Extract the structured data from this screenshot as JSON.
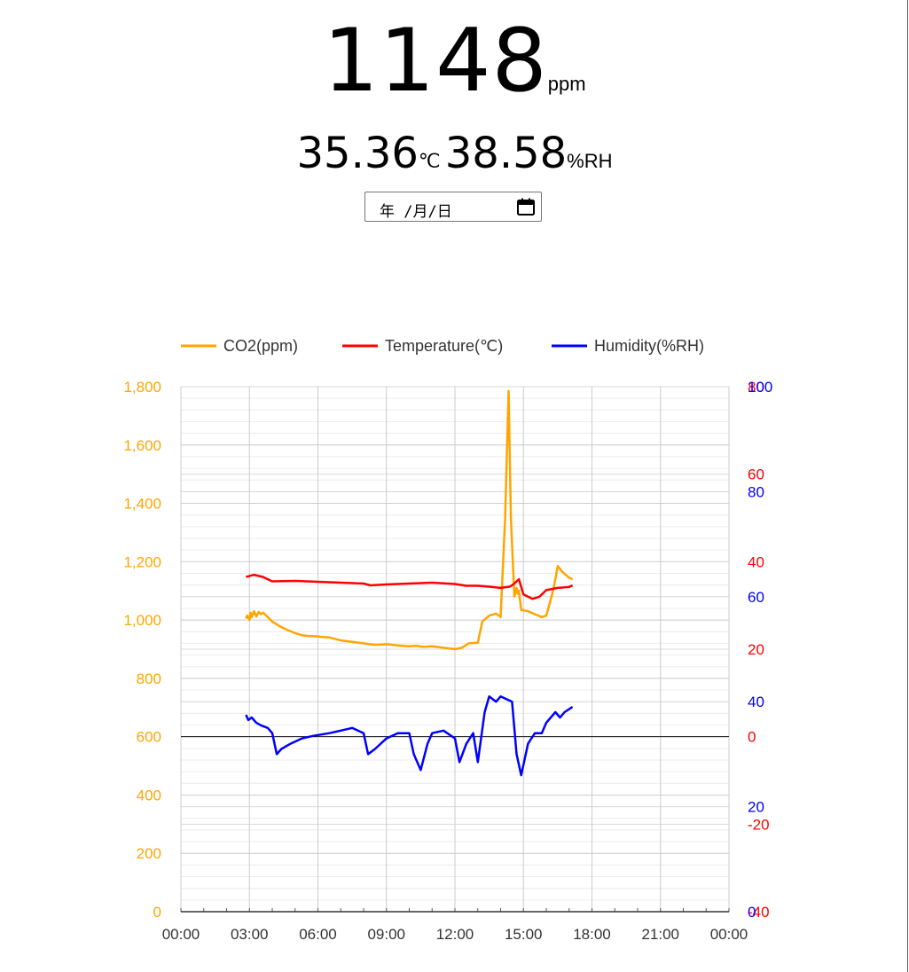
{
  "readout": {
    "co2_value": "1148",
    "co2_unit": "ppm",
    "temperature_value": "35.36",
    "temperature_unit": "℃",
    "humidity_value": "38.58",
    "humidity_unit": "%RH"
  },
  "date_picker": {
    "placeholder_text": "年 /月/日",
    "icon": "calendar-icon"
  },
  "chart_data": {
    "type": "line",
    "legend_position": "top",
    "grid": true,
    "colors": {
      "co2": "#FFA500",
      "temperature": "#FF0000",
      "humidity": "#0000FF",
      "grid": "#cccccc",
      "axis": "#333333"
    },
    "x_ticks": [
      "00:00",
      "03:00",
      "06:00",
      "09:00",
      "12:00",
      "15:00",
      "18:00",
      "21:00",
      "00:00"
    ],
    "x_range_hours": [
      0,
      24
    ],
    "axes": {
      "co2": {
        "range": [
          0,
          1800
        ],
        "ticks": [
          "0",
          "200",
          "400",
          "600",
          "800",
          "1,000",
          "1,200",
          "1,400",
          "1,600",
          "1,800"
        ]
      },
      "temperature": {
        "range": [
          -40,
          80
        ],
        "ticks": [
          "-40",
          "-20",
          "0",
          "20",
          "40",
          "60",
          "80"
        ]
      },
      "humidity": {
        "range": [
          0,
          100
        ],
        "ticks": [
          "0",
          "20",
          "40",
          "60",
          "80",
          "100"
        ]
      }
    },
    "series": [
      {
        "name": "CO2(ppm)",
        "key": "co2",
        "axis": "co2",
        "x": [
          2.85,
          2.9,
          3.0,
          3.05,
          3.1,
          3.2,
          3.3,
          3.4,
          3.5,
          3.6,
          3.8,
          4.0,
          4.3,
          4.6,
          5.0,
          5.3,
          5.6,
          5.8,
          6.2,
          6.5,
          7.0,
          7.5,
          8.0,
          8.5,
          9.0,
          9.5,
          10.0,
          10.3,
          10.6,
          11.0,
          11.5,
          12.0,
          12.3,
          12.6,
          13.0,
          13.2,
          13.5,
          13.8,
          14.0,
          14.2,
          14.35,
          14.45,
          14.6,
          14.7,
          14.75,
          14.8,
          14.9,
          15.2,
          15.5,
          15.8,
          16.0,
          16.3,
          16.5,
          16.7,
          17.0,
          17.15
        ],
        "values": [
          1005,
          1015,
          1000,
          1025,
          1010,
          1030,
          1012,
          1028,
          1020,
          1025,
          1010,
          995,
          980,
          968,
          955,
          948,
          945,
          945,
          942,
          940,
          930,
          925,
          920,
          915,
          917,
          913,
          910,
          912,
          908,
          910,
          905,
          900,
          905,
          920,
          922,
          995,
          1015,
          1022,
          1010,
          1350,
          1785,
          1350,
          1080,
          1110,
          1090,
          1100,
          1035,
          1030,
          1020,
          1010,
          1015,
          1100,
          1185,
          1165,
          1145,
          1140
        ]
      },
      {
        "name": "Temperature(℃)",
        "key": "temperature",
        "axis": "temperature",
        "x": [
          2.85,
          3.2,
          3.6,
          4.0,
          5.0,
          6.0,
          7.0,
          8.0,
          8.3,
          9.0,
          10.0,
          11.0,
          12.0,
          12.5,
          13.0,
          13.5,
          14.0,
          14.4,
          14.6,
          14.8,
          15.0,
          15.4,
          15.7,
          16.0,
          16.5,
          17.0,
          17.15
        ],
        "values": [
          36.5,
          37,
          36.5,
          35.5,
          35.6,
          35.4,
          35.2,
          35.0,
          34.6,
          34.8,
          35.0,
          35.2,
          34.9,
          34.5,
          34.5,
          34.3,
          34.0,
          34.3,
          35,
          36,
          32.5,
          31.5,
          32,
          33.5,
          34,
          34.2,
          34.6
        ],
        "values_note": ""
      },
      {
        "name": "Humidity(%RH)",
        "key": "humidity",
        "axis": "humidity",
        "x": [
          2.85,
          2.95,
          3.1,
          3.3,
          3.5,
          3.8,
          4.0,
          4.2,
          4.4,
          4.8,
          5.3,
          5.8,
          6.5,
          7.0,
          7.5,
          8.0,
          8.2,
          8.5,
          9.0,
          9.5,
          10.0,
          10.2,
          10.5,
          10.8,
          11.0,
          11.5,
          12.0,
          12.2,
          12.5,
          12.8,
          13.0,
          13.3,
          13.5,
          13.8,
          14.0,
          14.5,
          14.7,
          14.9,
          15.2,
          15.5,
          15.8,
          16.0,
          16.4,
          16.6,
          16.8,
          17.15
        ],
        "values": [
          37.5,
          36.5,
          37,
          36,
          35.5,
          35,
          34,
          30,
          31,
          32,
          33,
          33.5,
          34,
          34.5,
          35,
          34,
          30,
          31,
          33,
          34,
          34,
          30,
          27,
          32,
          34,
          34.5,
          33,
          28.5,
          32,
          34,
          28.5,
          38,
          41,
          40,
          41,
          40,
          30,
          26,
          32,
          34,
          34,
          36,
          38,
          37,
          38,
          39
        ]
      }
    ]
  }
}
